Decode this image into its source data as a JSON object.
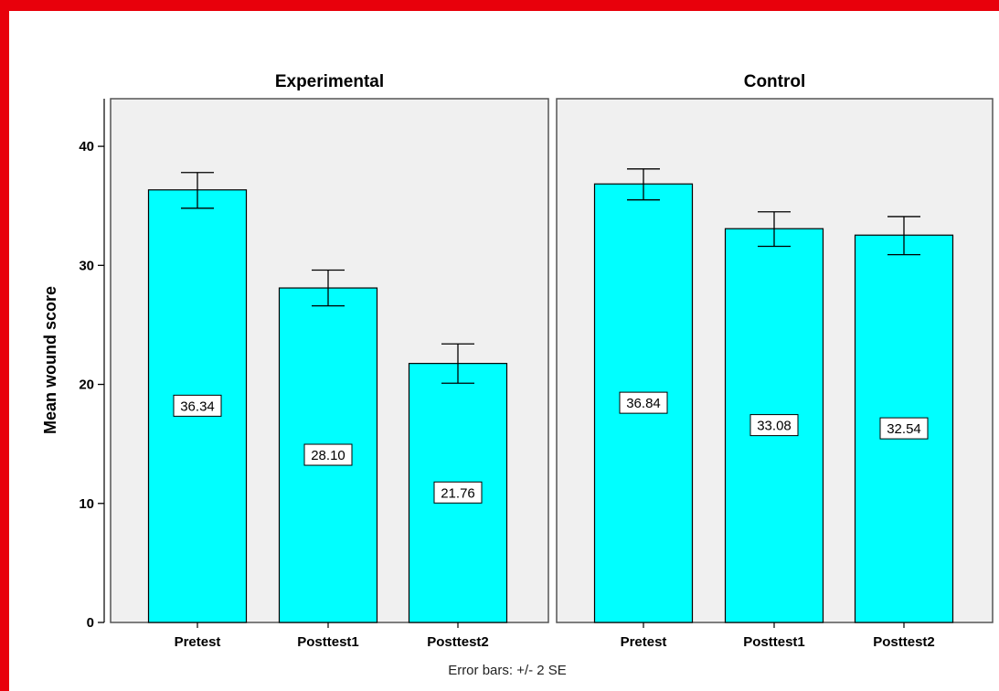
{
  "colors": {
    "bar_fill": "#00ffff",
    "panel_bg": "#f0f0f0",
    "frame": "#e8000b",
    "stroke": "#000000"
  },
  "chart_data": {
    "type": "bar",
    "panels": [
      {
        "title": "Experimental",
        "categories": [
          "Pretest",
          "Posttest1",
          "Posttest2"
        ],
        "values": [
          36.34,
          28.1,
          21.76
        ],
        "error_low": [
          34.8,
          26.6,
          20.1
        ],
        "error_high": [
          37.8,
          29.6,
          23.4
        ],
        "data_labels": [
          "36.34",
          "28.10",
          "21.76"
        ]
      },
      {
        "title": "Control",
        "categories": [
          "Pretest",
          "Posttest1",
          "Posttest2"
        ],
        "values": [
          36.84,
          33.08,
          32.54
        ],
        "error_low": [
          35.5,
          31.6,
          30.9
        ],
        "error_high": [
          38.1,
          34.5,
          34.1
        ],
        "data_labels": [
          "36.84",
          "33.08",
          "32.54"
        ]
      }
    ],
    "ylabel": "Mean wound score",
    "yticks": [
      "0",
      "10",
      "20",
      "30",
      "40"
    ],
    "ytick_values": [
      0,
      10,
      20,
      30,
      40
    ],
    "ylim": [
      0,
      44
    ],
    "footnote": "Error bars: +/- 2 SE",
    "grid": false,
    "legend": "none"
  }
}
